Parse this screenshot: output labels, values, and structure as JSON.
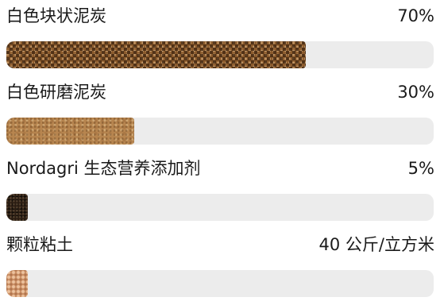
{
  "items": [
    {
      "label": "白色块状泥炭",
      "value_text": "70%",
      "fill_fraction": 0.7,
      "texture": "chunk-peat-texture"
    },
    {
      "label": "白色研磨泥炭",
      "value_text": "30%",
      "fill_fraction": 0.3,
      "texture": "ground-peat-texture"
    },
    {
      "label": "Nordagri 生态营养添加剂",
      "value_text": "5%",
      "fill_fraction": 0.05,
      "texture": "additive-texture"
    },
    {
      "label": "颗粒粘土",
      "value_text": "40 公斤/立方米",
      "fill_fraction": 0.05,
      "texture": "clay-granule-texture"
    }
  ],
  "colors": {
    "track": "#ececec",
    "text": "#1a1a1a",
    "chunk_peat": "#8a5a2c",
    "ground_peat": "#b7854f",
    "additive": "#2a1c12",
    "clay": "#c98d62"
  }
}
